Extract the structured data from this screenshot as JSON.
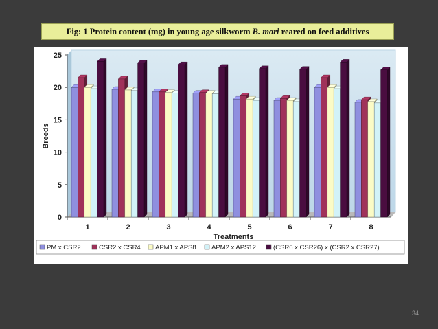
{
  "slide": {
    "caption_prefix": "Fig: 1 Protein content (mg) in young age silkworm ",
    "caption_species": "B. mori",
    "caption_suffix": " reared on feed additives",
    "slide_number": "34"
  },
  "colors": {
    "background": "#3b3b3b",
    "caption_bg": "#e9ee9a",
    "plot_wall": "#cfe3ef",
    "plot_wall_edge": "#bcd6e6",
    "floor": "#b9b9b9"
  },
  "chart_data": {
    "type": "bar",
    "title": "",
    "xlabel": "Treatments",
    "ylabel": "Breeds",
    "ylim": [
      0,
      25
    ],
    "yticks": [
      0,
      5,
      10,
      15,
      20,
      25
    ],
    "categories": [
      "1",
      "2",
      "3",
      "4",
      "5",
      "6",
      "7",
      "8"
    ],
    "grid": false,
    "legend_position": "bottom",
    "series": [
      {
        "name": "PM x CSR2",
        "color": "#8f8fdf",
        "values": [
          20.0,
          19.7,
          19.3,
          19.1,
          18.2,
          18.0,
          20.0,
          17.7
        ]
      },
      {
        "name": "CSR2 x CSR4",
        "color": "#a0325a",
        "values": [
          21.5,
          21.3,
          19.3,
          19.2,
          18.7,
          18.3,
          21.5,
          18.1
        ]
      },
      {
        "name": "APM1 x APS8",
        "color": "#fbfbc6",
        "values": [
          20.0,
          19.6,
          19.2,
          19.1,
          18.2,
          18.0,
          20.0,
          17.8
        ]
      },
      {
        "name": "APM2 x APS12",
        "color": "#d2f2f8",
        "values": [
          19.8,
          19.5,
          19.1,
          19.0,
          18.0,
          17.8,
          19.8,
          17.6
        ]
      },
      {
        "name": "(CSR6 x CSR26) x (CSR2 x CSR27)",
        "color": "#4a0d40",
        "values": [
          24.0,
          23.8,
          23.5,
          23.1,
          22.9,
          22.8,
          23.9,
          22.7
        ]
      }
    ]
  }
}
